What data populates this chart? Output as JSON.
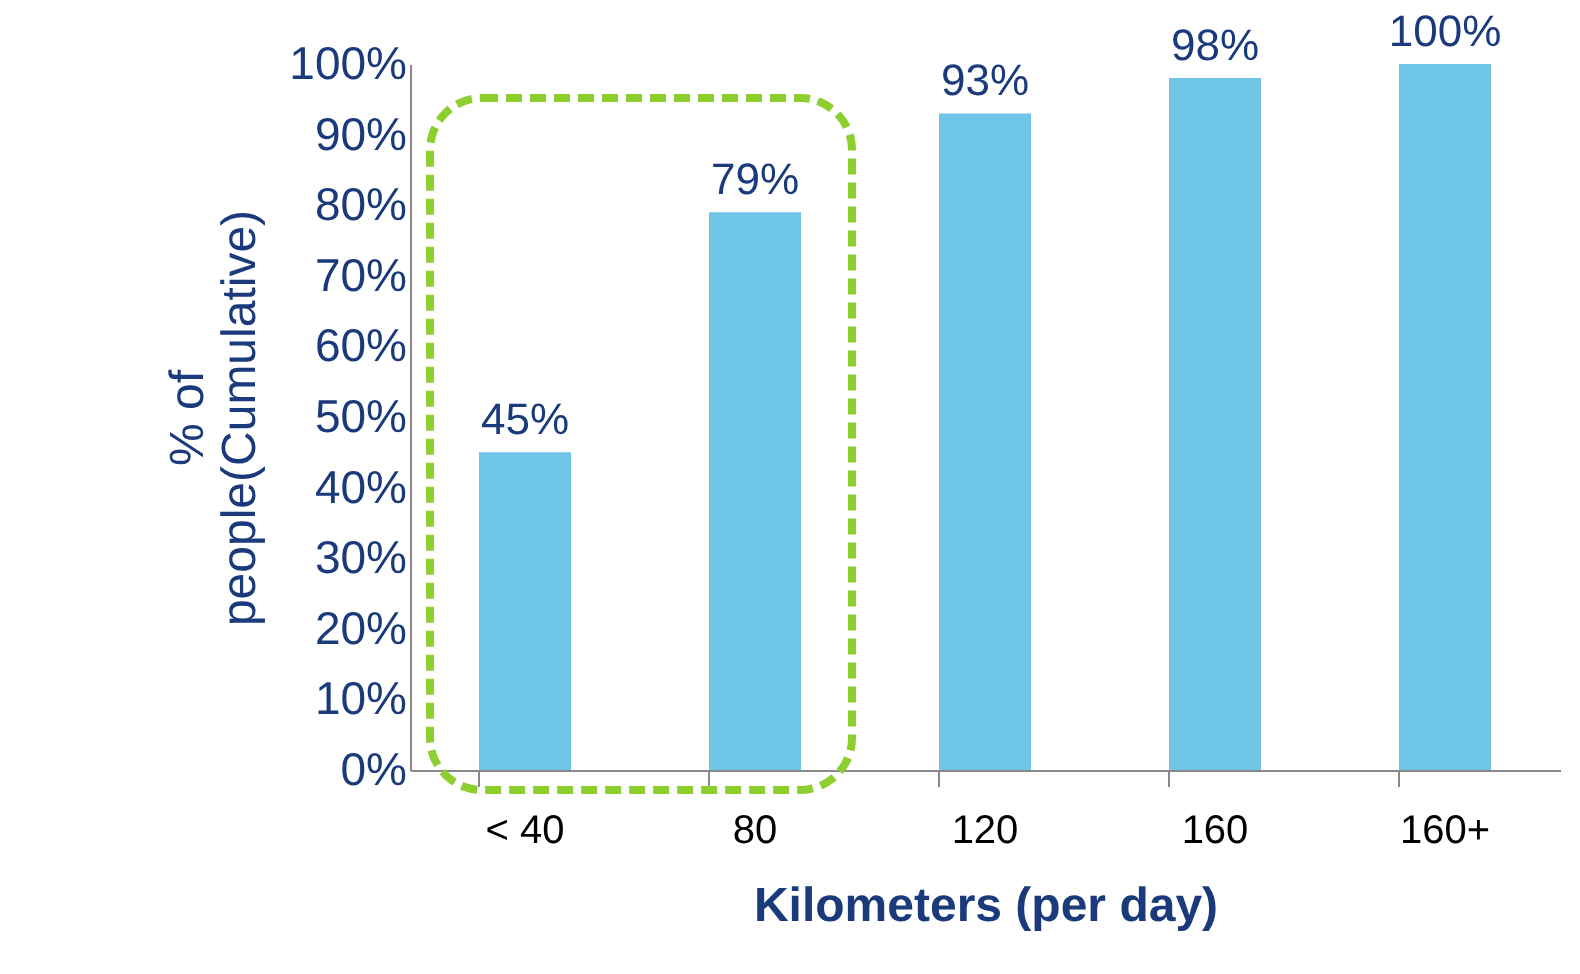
{
  "chart_data": {
    "type": "bar",
    "xlabel": "Kilometers (per day)",
    "ylabel": "% of\npeople(Cumulative)",
    "categories": [
      "< 40",
      "80",
      "120",
      "160",
      "160+"
    ],
    "values": [
      45,
      79,
      93,
      98,
      100
    ],
    "value_labels": [
      "45%",
      "79%",
      "93%",
      "98%",
      "100%"
    ],
    "color": "#6fc5e5",
    "ylim": [
      0,
      100
    ],
    "yticks": [
      {
        "value": 0,
        "label": "0%"
      },
      {
        "value": 10,
        "label": "10%"
      },
      {
        "value": 20,
        "label": "20%"
      },
      {
        "value": 30,
        "label": "30%"
      },
      {
        "value": 40,
        "label": "40%"
      },
      {
        "value": 50,
        "label": "50%"
      },
      {
        "value": 60,
        "label": "60%"
      },
      {
        "value": 70,
        "label": "70%"
      },
      {
        "value": 80,
        "label": "80%"
      },
      {
        "value": 90,
        "label": "90%"
      },
      {
        "value": 100,
        "label": "100%"
      }
    ],
    "grid": false
  }
}
